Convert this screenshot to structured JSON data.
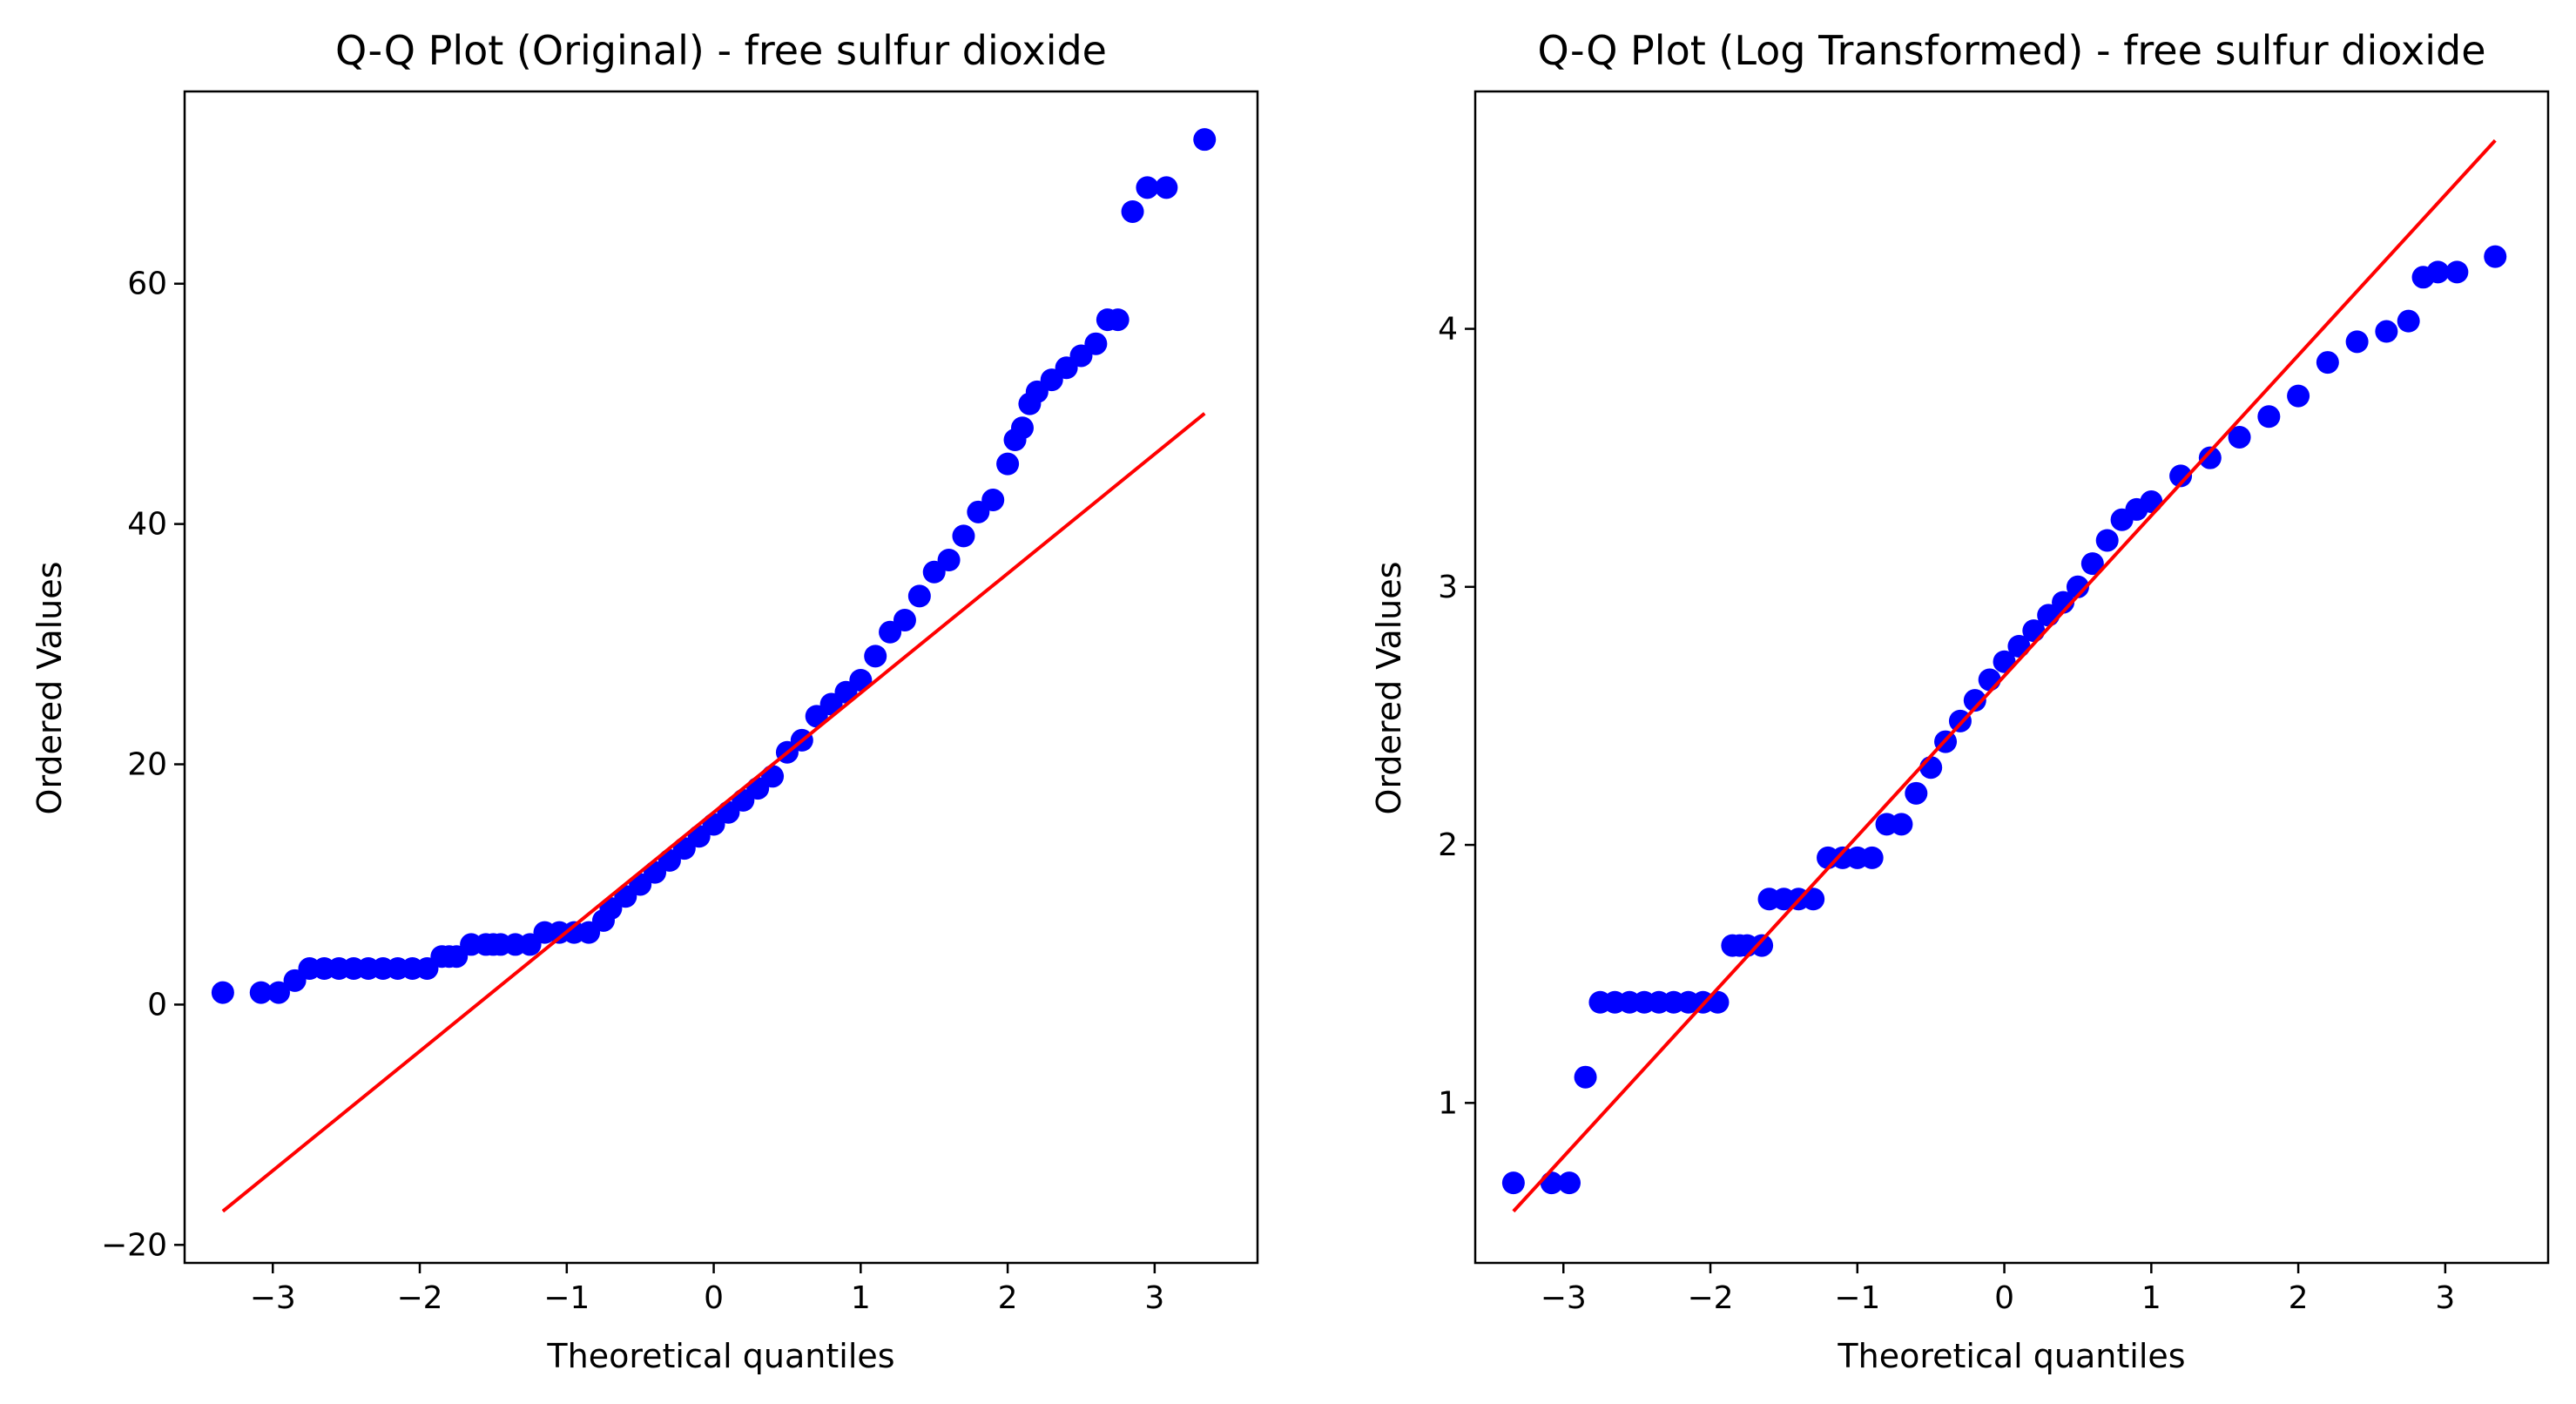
{
  "colors": {
    "points": "#0000ff",
    "fit_line": "#ff0000",
    "axes": "#000000",
    "background": "#ffffff"
  },
  "chart_data": [
    {
      "type": "scatter",
      "title": "Q-Q Plot (Original) - free sulfur dioxide",
      "xlabel": "Theoretical quantiles",
      "ylabel": "Ordered Values",
      "xlim": [
        -3.6,
        3.7
      ],
      "ylim": [
        -21.5,
        76
      ],
      "xticks": [
        -3,
        -2,
        -1,
        0,
        1,
        2,
        3
      ],
      "xtick_labels": [
        "−3",
        "−2",
        "−1",
        "0",
        "1",
        "2",
        "3"
      ],
      "yticks": [
        -20,
        0,
        20,
        40,
        60
      ],
      "ytick_labels": [
        "−20",
        "0",
        "20",
        "40",
        "60"
      ],
      "grid": false,
      "fit_line": {
        "x": [
          -3.34,
          3.34
        ],
        "y": [
          -17.2,
          49.2
        ]
      },
      "points": {
        "x": [
          -3.34,
          -3.08,
          -2.96,
          -2.85,
          -2.75,
          -2.65,
          -2.55,
          -2.45,
          -2.35,
          -2.25,
          -2.15,
          -2.05,
          -1.95,
          -1.85,
          -1.8,
          -1.75,
          -1.65,
          -1.55,
          -1.5,
          -1.45,
          -1.35,
          -1.25,
          -1.15,
          -1.05,
          -0.95,
          -0.85,
          -0.75,
          -0.7,
          -0.6,
          -0.5,
          -0.4,
          -0.3,
          -0.2,
          -0.1,
          0,
          0.1,
          0.2,
          0.3,
          0.4,
          0.5,
          0.6,
          0.7,
          0.8,
          0.9,
          1.0,
          1.1,
          1.2,
          1.3,
          1.4,
          1.5,
          1.6,
          1.7,
          1.8,
          1.9,
          2.0,
          2.05,
          2.1,
          2.15,
          2.2,
          2.3,
          2.4,
          2.5,
          2.6,
          2.68,
          2.75,
          2.85,
          2.95,
          3.08,
          3.34
        ],
        "y": [
          1,
          1,
          1,
          2,
          3,
          3,
          3,
          3,
          3,
          3,
          3,
          3,
          3,
          4,
          4,
          4,
          5,
          5,
          5,
          5,
          5,
          5,
          6,
          6,
          6,
          6,
          7,
          8,
          9,
          10,
          11,
          12,
          13,
          14,
          15,
          16,
          17,
          18,
          19,
          21,
          22,
          24,
          25,
          26,
          27,
          29,
          31,
          32,
          34,
          36,
          37,
          39,
          41,
          42,
          45,
          47,
          48,
          50,
          51,
          52,
          53,
          54,
          55,
          57,
          57,
          66,
          68,
          68,
          72
        ]
      }
    },
    {
      "type": "scatter",
      "title": "Q-Q Plot (Log Transformed) - free sulfur dioxide",
      "xlabel": "Theoretical quantiles",
      "ylabel": "Ordered Values",
      "xlim": [
        -3.6,
        3.7
      ],
      "ylim": [
        0.38,
        4.92
      ],
      "xticks": [
        -3,
        -2,
        -1,
        0,
        1,
        2,
        3
      ],
      "xtick_labels": [
        "−3",
        "−2",
        "−1",
        "0",
        "1",
        "2",
        "3"
      ],
      "yticks": [
        1,
        2,
        3,
        4
      ],
      "ytick_labels": [
        "1",
        "2",
        "3",
        "4"
      ],
      "grid": false,
      "fit_line": {
        "x": [
          -3.34,
          3.34
        ],
        "y": [
          0.58,
          4.73
        ]
      },
      "points": {
        "x": [
          -3.34,
          -3.08,
          -2.96,
          -2.85,
          -2.75,
          -2.65,
          -2.55,
          -2.45,
          -2.35,
          -2.25,
          -2.15,
          -2.05,
          -1.95,
          -1.85,
          -1.8,
          -1.75,
          -1.65,
          -1.6,
          -1.5,
          -1.4,
          -1.3,
          -1.2,
          -1.1,
          -1.0,
          -0.9,
          -0.8,
          -0.7,
          -0.6,
          -0.5,
          -0.4,
          -0.3,
          -0.2,
          -0.1,
          0,
          0.1,
          0.2,
          0.3,
          0.4,
          0.5,
          0.6,
          0.7,
          0.8,
          0.9,
          1.0,
          1.2,
          1.4,
          1.6,
          1.8,
          2.0,
          2.2,
          2.4,
          2.6,
          2.75,
          2.85,
          2.95,
          3.08,
          3.34
        ],
        "y": [
          0.69,
          0.69,
          0.69,
          1.1,
          1.39,
          1.39,
          1.39,
          1.39,
          1.39,
          1.39,
          1.39,
          1.39,
          1.39,
          1.61,
          1.61,
          1.61,
          1.61,
          1.79,
          1.79,
          1.79,
          1.79,
          1.95,
          1.95,
          1.95,
          1.95,
          2.08,
          2.08,
          2.2,
          2.3,
          2.4,
          2.48,
          2.56,
          2.64,
          2.71,
          2.77,
          2.83,
          2.89,
          2.94,
          3.0,
          3.09,
          3.18,
          3.26,
          3.3,
          3.33,
          3.43,
          3.5,
          3.58,
          3.66,
          3.74,
          3.87,
          3.95,
          3.99,
          4.03,
          4.2,
          4.22,
          4.22,
          4.28
        ]
      }
    }
  ]
}
